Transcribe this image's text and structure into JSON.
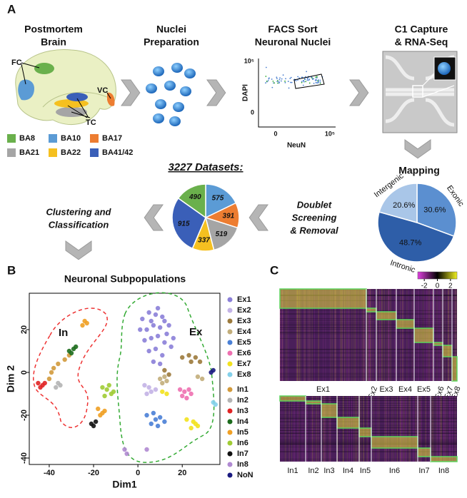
{
  "panel_labels": [
    "A",
    "B",
    "C"
  ],
  "workflow": {
    "steps": [
      {
        "lines": [
          "Postmortem",
          "Brain"
        ]
      },
      {
        "lines": [
          "Nuclei",
          "Preparation"
        ]
      },
      {
        "lines": [
          "FACS Sort",
          "Neuronal Nuclei"
        ]
      },
      {
        "lines": [
          "C1 Capture",
          "& RNA-Seq"
        ]
      }
    ],
    "brain_labels": [
      "FC",
      "VC",
      "TC"
    ],
    "regions": [
      {
        "name": "BA8",
        "color": "#6ab04c"
      },
      {
        "name": "BA10",
        "color": "#5b9bd5"
      },
      {
        "name": "BA17",
        "color": "#ed7d31"
      },
      {
        "name": "BA21",
        "color": "#a5a5a5"
      },
      {
        "name": "BA22",
        "color": "#f5c020"
      },
      {
        "name": "BA41/42",
        "color": "#3a5fb8"
      }
    ],
    "facs": {
      "y_label": "DAPI",
      "x_label": "NeuN",
      "y_ticks": [
        "10⁵",
        "0"
      ],
      "x_ticks": [
        "0",
        "10⁵"
      ]
    },
    "doublet": [
      "Doublet",
      "Screening",
      "& Removal"
    ],
    "clustering": [
      "Clustering and",
      "Classification"
    ]
  },
  "chart_data": [
    {
      "type": "pie",
      "title": "3227 Datasets:",
      "values": [
        575,
        391,
        519,
        337,
        915,
        490
      ],
      "colors": [
        "#5b9bd5",
        "#ed7d31",
        "#a5a5a5",
        "#f5c020",
        "#3a5fb8",
        "#6ab04c"
      ]
    },
    {
      "type": "pie",
      "title": "Mapping",
      "categories": [
        "Exonic",
        "Intronic",
        "Intergenic"
      ],
      "values": [
        30.6,
        48.7,
        20.6
      ],
      "value_labels": [
        "30.6%",
        "48.7%",
        "20.6%"
      ],
      "colors": [
        "#5b8fd0",
        "#2e5ea8",
        "#a9c6e8"
      ]
    },
    {
      "type": "scatter",
      "title": "Neuronal Subpopulations",
      "x_label": "Dim1",
      "y_label": "Dim 2",
      "annotations": [
        "In",
        "Ex"
      ],
      "xlim": [
        -49,
        37
      ],
      "ylim": [
        -43,
        37
      ],
      "xticks": [
        -40,
        -20,
        0,
        20
      ],
      "yticks": [
        -40,
        -20,
        0,
        20
      ],
      "series": [
        {
          "name": "Ex1",
          "color": "#8b80d8",
          "x": [
            2,
            5,
            8,
            11,
            14,
            4,
            7,
            10,
            13,
            3,
            6,
            9,
            12,
            15,
            5,
            8,
            11,
            7,
            10,
            16,
            1,
            9,
            12,
            6
          ],
          "values": [
            25,
            28,
            27,
            26,
            22,
            20,
            22,
            21,
            18,
            15,
            16,
            17,
            14,
            12,
            10,
            11,
            8,
            5,
            4,
            16,
            20,
            30,
            24,
            24
          ]
        },
        {
          "name": "Ex2",
          "color": "#c3b3e6",
          "x": [
            3,
            5,
            6,
            4,
            8
          ],
          "values": [
            -6,
            -7,
            -9,
            -10,
            -8
          ]
        },
        {
          "name": "Ex3",
          "color": "#9c7a3c",
          "x": [
            20,
            23,
            26,
            28,
            24,
            12,
            14
          ],
          "values": [
            7,
            8,
            7,
            5,
            5,
            1,
            -1
          ]
        },
        {
          "name": "Ex4",
          "color": "#c2ad7a",
          "x": [
            10,
            12,
            13,
            11,
            27,
            29
          ],
          "values": [
            -3,
            -2,
            -4,
            -5,
            -2,
            -3
          ]
        },
        {
          "name": "Ex5",
          "color": "#4a80d6",
          "x": [
            4,
            7,
            10,
            6,
            9,
            8,
            12
          ],
          "values": [
            -20,
            -19,
            -21,
            -24,
            -25,
            -22,
            -23
          ]
        },
        {
          "name": "Ex6",
          "color": "#ee70b0",
          "x": [
            19,
            21,
            24,
            22,
            20,
            23
          ],
          "values": [
            -8,
            -9,
            -10,
            -12,
            -11,
            -8
          ]
        },
        {
          "name": "Ex7",
          "color": "#f2e21e",
          "x": [
            22,
            25,
            27,
            24,
            26,
            11,
            13
          ],
          "values": [
            -22,
            -23,
            -25,
            -26,
            -24,
            -9,
            -10
          ]
        },
        {
          "name": "Ex8",
          "color": "#84d0ea",
          "x": [
            34,
            35
          ],
          "values": [
            -14,
            -15
          ]
        },
        {
          "name": "In1",
          "color": "#d29a3c",
          "x": [
            -40,
            -38,
            -36,
            -33,
            -31,
            -39
          ],
          "values": [
            -3,
            2,
            4,
            6,
            8,
            0
          ]
        },
        {
          "name": "In2",
          "color": "#b4b4b4",
          "x": [
            -36,
            -35,
            -37
          ],
          "values": [
            -5,
            -6,
            -7
          ]
        },
        {
          "name": "In3",
          "color": "#e02424",
          "x": [
            -45,
            -43,
            -44,
            -42
          ],
          "values": [
            -5,
            -6,
            -7,
            -5
          ]
        },
        {
          "name": "In4",
          "color": "#1c6b1c",
          "x": [
            -30,
            -29,
            -28,
            -31
          ],
          "values": [
            9,
            11,
            12,
            10
          ]
        },
        {
          "name": "In5",
          "color": "#f0a024",
          "x": [
            -25,
            -24,
            -23,
            -18,
            -16,
            -15,
            -17
          ],
          "values": [
            22,
            24,
            23,
            -17,
            -19,
            -18,
            -20
          ]
        },
        {
          "name": "In6",
          "color": "#a0cc34",
          "x": [
            -16,
            -14,
            -12,
            -15,
            -13,
            -11
          ],
          "values": [
            -7,
            -8,
            -10,
            -11,
            -6,
            -9
          ]
        },
        {
          "name": "In7",
          "color": "#111111",
          "x": [
            -21,
            -20,
            -19
          ],
          "values": [
            -24,
            -25,
            -23
          ]
        },
        {
          "name": "In8",
          "color": "#b08ad2",
          "x": [
            -6,
            -5,
            4
          ],
          "values": [
            -36,
            -38,
            -36
          ]
        },
        {
          "name": "NoN",
          "color": "#1a1a80",
          "x": [
            33,
            34
          ],
          "values": [
            0,
            1
          ]
        }
      ]
    },
    {
      "type": "heatmap",
      "clim": [
        -3,
        3
      ],
      "colorbar_ticks": [
        -2,
        0,
        2
      ],
      "colormap": [
        "#e040e0",
        "#000000",
        "#f0f020"
      ],
      "panels": [
        {
          "groups": [
            "Ex1",
            "Ex2",
            "Ex3",
            "Ex4",
            "Ex5",
            "Ex6",
            "Ex7",
            "Ex8"
          ]
        },
        {
          "groups": [
            "In1",
            "In2",
            "In3",
            "In4",
            "In5",
            "In6",
            "In7",
            "In8"
          ]
        }
      ]
    }
  ]
}
